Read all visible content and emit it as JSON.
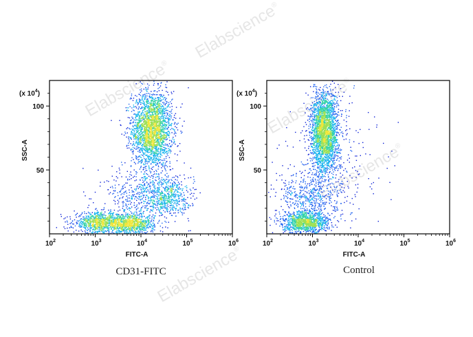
{
  "watermark": "Elabscience",
  "watermark_mark": "®",
  "density_colors": [
    "#0a1fd6",
    "#1f63f0",
    "#16b3ee",
    "#35d3a6",
    "#9de055",
    "#f0e63a"
  ],
  "chart_data": [
    {
      "type": "scatter",
      "caption": "CD31-FITC",
      "xlabel": "FITC-A",
      "ylabel": "SSC-A",
      "x_scale": "log",
      "xlim": [
        100,
        1000000
      ],
      "x_ticks": [
        "10",
        "10",
        "10",
        "10",
        "10"
      ],
      "x_tick_exponents": [
        "2",
        "3",
        "4",
        "5",
        "6"
      ],
      "ylim": [
        0,
        120
      ],
      "y_ticks": [
        "50",
        "100"
      ],
      "y_multiplier_base": "(x 10",
      "y_multiplier_exp": "4",
      "y_multiplier_close": ")",
      "populations": [
        {
          "name": "main",
          "center": [
            17000,
            82
          ],
          "spread": [
            0.22,
            15
          ],
          "count": 2600
        },
        {
          "name": "low-left",
          "center": [
            1200,
            9
          ],
          "spread": [
            0.28,
            4
          ],
          "count": 900
        },
        {
          "name": "low-right",
          "center": [
            6000,
            8
          ],
          "spread": [
            0.25,
            4
          ],
          "count": 900
        },
        {
          "name": "diffuse",
          "center": [
            15000,
            30
          ],
          "spread": [
            0.45,
            10
          ],
          "count": 650
        },
        {
          "name": "side",
          "center": [
            40000,
            30
          ],
          "spread": [
            0.2,
            7
          ],
          "count": 350
        }
      ]
    },
    {
      "type": "scatter",
      "caption": "Control",
      "xlabel": "FITC-A",
      "ylabel": "SSC-A",
      "x_scale": "log",
      "xlim": [
        100,
        1000000
      ],
      "x_ticks": [
        "10",
        "10",
        "10",
        "10",
        "10"
      ],
      "x_tick_exponents": [
        "2",
        "3",
        "4",
        "5",
        "6"
      ],
      "ylim": [
        0,
        120
      ],
      "y_ticks": [
        "50",
        "100"
      ],
      "y_multiplier_base": "(x 10",
      "y_multiplier_exp": "4",
      "y_multiplier_close": ")",
      "populations": [
        {
          "name": "main",
          "center": [
            1800,
            80
          ],
          "spread": [
            0.15,
            16
          ],
          "count": 2600
        },
        {
          "name": "low",
          "center": [
            700,
            9
          ],
          "spread": [
            0.25,
            4
          ],
          "count": 1100
        },
        {
          "name": "diffuse",
          "center": [
            900,
            28
          ],
          "spread": [
            0.35,
            12
          ],
          "count": 600
        },
        {
          "name": "sparse",
          "center": [
            3000,
            60
          ],
          "spread": [
            0.5,
            25
          ],
          "count": 250
        }
      ]
    }
  ]
}
